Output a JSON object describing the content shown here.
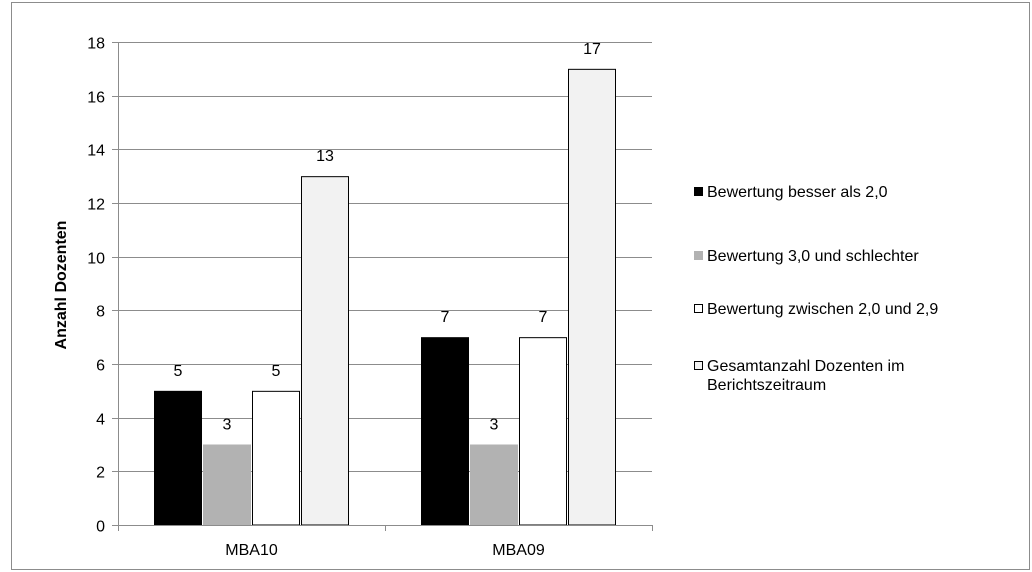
{
  "chart_data": {
    "type": "bar",
    "categories": [
      "MBA10",
      "MBA09"
    ],
    "series": [
      {
        "name": "Bewertung besser als 2,0",
        "values": [
          5,
          7
        ],
        "color": "#000000",
        "border": "#000000"
      },
      {
        "name": "Bewertung 3,0 und schlechter",
        "values": [
          3,
          3
        ],
        "color": "#b2b2b2",
        "border": "#b2b2b2"
      },
      {
        "name": "Bewertung zwischen 2,0 und 2,9",
        "values": [
          5,
          7
        ],
        "color": "#ffffff",
        "border": "#000000"
      },
      {
        "name": "Gesamtanzahl Dozenten im Berichtszeitraum",
        "values": [
          13,
          17
        ],
        "color": "#f2f2f2",
        "border": "#000000"
      }
    ],
    "ylabel": "Anzahl Dozenten",
    "xlabel": "",
    "title": "",
    "ylim": [
      0,
      18
    ],
    "yticks": [
      0,
      2,
      4,
      6,
      8,
      10,
      12,
      14,
      16,
      18
    ],
    "grid": true,
    "legend_position": "right"
  }
}
